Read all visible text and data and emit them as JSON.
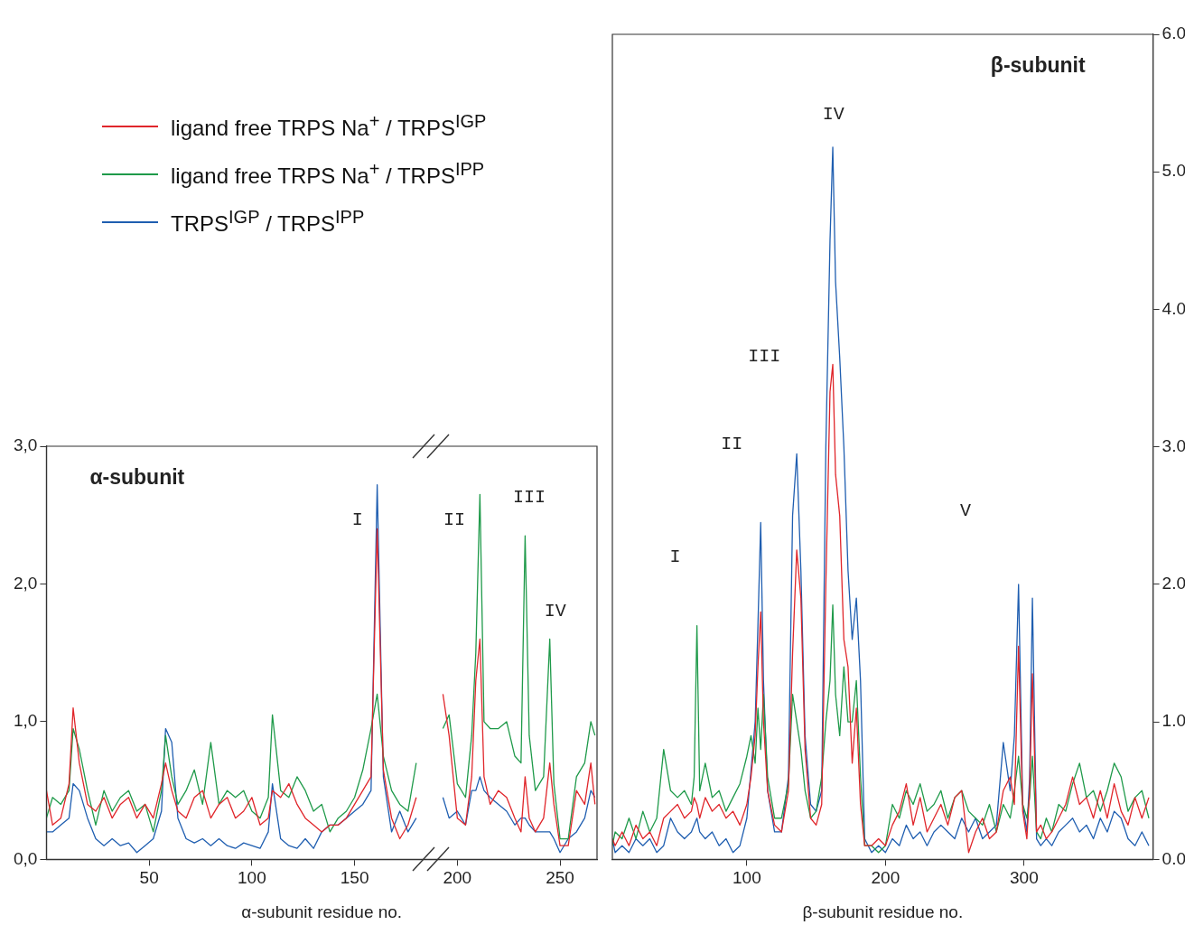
{
  "chart_data": [
    {
      "type": "line",
      "title": "α-subunit",
      "xlabel": "α-subunit residue no.",
      "xlim": [
        0,
        268
      ],
      "xticks": [
        50,
        100,
        150,
        200,
        250
      ],
      "ylim": [
        0,
        3
      ],
      "yticks": [
        {
          "value": 0,
          "label": "0,0"
        },
        {
          "value": 1,
          "label": "1,0"
        },
        {
          "value": 2,
          "label": "2,0"
        },
        {
          "value": 3,
          "label": "3,0"
        }
      ],
      "grid": false,
      "legend": "top left",
      "x": [
        0,
        3,
        7,
        11,
        13,
        16,
        20,
        24,
        28,
        32,
        36,
        40,
        44,
        48,
        52,
        56,
        58,
        61,
        64,
        68,
        72,
        76,
        80,
        84,
        88,
        92,
        96,
        100,
        104,
        108,
        110,
        114,
        118,
        122,
        126,
        130,
        134,
        138,
        142,
        146,
        150,
        154,
        158,
        161,
        164,
        168,
        172,
        176,
        180,
        187,
        193,
        196,
        200,
        204,
        207,
        209,
        211,
        213,
        216,
        220,
        224,
        228,
        231,
        233,
        235,
        238,
        242,
        245,
        247,
        250,
        254,
        258,
        262,
        265,
        267
      ],
      "series": [
        {
          "name": "ligand free TRPS Na$^{+}$ / TRPS$^{IGP}$",
          "color": "#e0262b",
          "values": [
            0.5,
            0.25,
            0.3,
            0.55,
            1.1,
            0.7,
            0.4,
            0.35,
            0.45,
            0.3,
            0.4,
            0.45,
            0.3,
            0.4,
            0.3,
            0.55,
            0.7,
            0.5,
            0.35,
            0.3,
            0.45,
            0.5,
            0.3,
            0.4,
            0.45,
            0.3,
            0.35,
            0.45,
            0.25,
            0.3,
            0.5,
            0.45,
            0.55,
            0.4,
            0.3,
            0.25,
            0.2,
            0.25,
            0.25,
            0.3,
            0.4,
            0.5,
            0.6,
            2.4,
            0.65,
            0.3,
            0.15,
            0.25,
            0.45,
            null,
            1.2,
            0.9,
            0.3,
            0.25,
            0.6,
            1.3,
            1.6,
            0.6,
            0.4,
            0.5,
            0.45,
            0.3,
            0.2,
            0.6,
            0.3,
            0.2,
            0.3,
            0.7,
            0.4,
            0.1,
            0.1,
            0.5,
            0.4,
            0.7,
            0.4
          ]
        },
        {
          "name": "ligand free TRPS Na$^{+}$ / TRPS$^{IPP}$",
          "color": "#1f9a4a",
          "values": [
            0.3,
            0.45,
            0.4,
            0.5,
            0.95,
            0.8,
            0.5,
            0.25,
            0.5,
            0.35,
            0.45,
            0.5,
            0.35,
            0.4,
            0.2,
            0.5,
            0.9,
            0.6,
            0.4,
            0.5,
            0.65,
            0.4,
            0.85,
            0.4,
            0.5,
            0.45,
            0.5,
            0.35,
            0.3,
            0.45,
            1.05,
            0.5,
            0.45,
            0.6,
            0.5,
            0.35,
            0.4,
            0.2,
            0.3,
            0.35,
            0.45,
            0.65,
            0.95,
            1.2,
            0.75,
            0.5,
            0.4,
            0.35,
            0.7,
            null,
            0.95,
            1.05,
            0.55,
            0.45,
            0.9,
            1.5,
            2.65,
            1.0,
            0.95,
            0.95,
            1.0,
            0.75,
            0.7,
            2.35,
            0.9,
            0.5,
            0.6,
            1.6,
            0.55,
            0.15,
            0.15,
            0.6,
            0.7,
            1.0,
            0.9
          ]
        },
        {
          "name": "TRPS$^{IGP}$ / TRPS$^{IPP}$",
          "color": "#1f5eb0",
          "values": [
            0.2,
            0.2,
            0.25,
            0.3,
            0.55,
            0.5,
            0.3,
            0.15,
            0.1,
            0.15,
            0.1,
            0.12,
            0.05,
            0.1,
            0.15,
            0.35,
            0.95,
            0.85,
            0.3,
            0.15,
            0.12,
            0.15,
            0.1,
            0.15,
            0.1,
            0.08,
            0.12,
            0.1,
            0.08,
            0.2,
            0.55,
            0.15,
            0.1,
            0.08,
            0.15,
            0.08,
            0.2,
            0.25,
            0.25,
            0.3,
            0.35,
            0.4,
            0.5,
            2.72,
            0.6,
            0.2,
            0.35,
            0.2,
            0.3,
            null,
            0.45,
            0.3,
            0.35,
            0.25,
            0.5,
            0.5,
            0.6,
            0.5,
            0.45,
            0.4,
            0.35,
            0.25,
            0.3,
            0.3,
            0.25,
            0.2,
            0.2,
            0.2,
            0.15,
            0.05,
            0.15,
            0.2,
            0.3,
            0.5,
            0.45
          ]
        }
      ],
      "annotations": [
        "I",
        "II",
        "III",
        "IV"
      ]
    },
    {
      "type": "line",
      "title": "β-subunit",
      "xlabel": "β-subunit residue no.",
      "xlim": [
        3,
        393
      ],
      "xticks": [
        100,
        200,
        300
      ],
      "ylim": [
        0,
        6
      ],
      "yticks": [
        {
          "value": 0,
          "label": "0.0"
        },
        {
          "value": 1,
          "label": "1.0"
        },
        {
          "value": 2,
          "label": "2.0"
        },
        {
          "value": 3,
          "label": "3.0"
        },
        {
          "value": 4,
          "label": "4.0"
        },
        {
          "value": 5,
          "label": "5.0"
        },
        {
          "value": 6,
          "label": "6.0"
        }
      ],
      "grid": false,
      "x": [
        3,
        5,
        10,
        15,
        20,
        25,
        30,
        35,
        40,
        45,
        50,
        55,
        60,
        62,
        64,
        66,
        70,
        75,
        80,
        85,
        90,
        95,
        100,
        103,
        106,
        108,
        110,
        112,
        115,
        120,
        125,
        130,
        133,
        136,
        139,
        142,
        146,
        150,
        154,
        157,
        160,
        162,
        164,
        167,
        170,
        173,
        176,
        179,
        182,
        185,
        190,
        195,
        200,
        205,
        210,
        215,
        220,
        225,
        230,
        235,
        240,
        245,
        250,
        255,
        260,
        265,
        270,
        275,
        280,
        285,
        290,
        293,
        296,
        299,
        302,
        304,
        306,
        309,
        312,
        316,
        320,
        325,
        330,
        335,
        340,
        345,
        350,
        355,
        360,
        365,
        370,
        375,
        380,
        385,
        390
      ],
      "series": [
        {
          "color": "#e0262b",
          "values": [
            0.15,
            0.1,
            0.2,
            0.1,
            0.25,
            0.15,
            0.2,
            0.1,
            0.3,
            0.35,
            0.4,
            0.3,
            0.35,
            0.45,
            0.4,
            0.3,
            0.45,
            0.35,
            0.4,
            0.3,
            0.35,
            0.25,
            0.4,
            0.6,
            0.9,
            1.4,
            1.8,
            1.0,
            0.5,
            0.25,
            0.2,
            0.5,
            1.5,
            2.25,
            1.9,
            0.8,
            0.3,
            0.25,
            0.4,
            2.0,
            3.4,
            3.6,
            2.8,
            2.5,
            1.6,
            1.4,
            0.7,
            1.1,
            0.4,
            0.1,
            0.1,
            0.15,
            0.1,
            0.25,
            0.35,
            0.55,
            0.25,
            0.45,
            0.2,
            0.3,
            0.4,
            0.25,
            0.45,
            0.5,
            0.05,
            0.2,
            0.3,
            0.15,
            0.2,
            0.5,
            0.6,
            0.4,
            1.55,
            0.35,
            0.15,
            0.5,
            1.35,
            0.2,
            0.25,
            0.15,
            0.2,
            0.3,
            0.4,
            0.6,
            0.4,
            0.45,
            0.3,
            0.5,
            0.3,
            0.55,
            0.35,
            0.25,
            0.45,
            0.3,
            0.45
          ]
        },
        {
          "color": "#1f9a4a",
          "values": [
            0.1,
            0.2,
            0.15,
            0.3,
            0.15,
            0.35,
            0.2,
            0.3,
            0.8,
            0.5,
            0.45,
            0.5,
            0.4,
            0.6,
            1.7,
            0.5,
            0.7,
            0.45,
            0.5,
            0.35,
            0.45,
            0.55,
            0.75,
            0.9,
            0.7,
            1.1,
            0.8,
            1.2,
            0.6,
            0.3,
            0.3,
            0.55,
            1.2,
            1.0,
            0.8,
            0.5,
            0.3,
            0.35,
            0.6,
            1.0,
            1.3,
            1.85,
            1.2,
            0.9,
            1.4,
            1.0,
            1.0,
            1.3,
            0.6,
            0.1,
            0.1,
            0.05,
            0.1,
            0.4,
            0.3,
            0.5,
            0.4,
            0.55,
            0.35,
            0.4,
            0.5,
            0.3,
            0.45,
            0.5,
            0.35,
            0.3,
            0.25,
            0.4,
            0.2,
            0.4,
            0.3,
            0.5,
            0.75,
            0.4,
            0.3,
            0.45,
            0.75,
            0.2,
            0.15,
            0.3,
            0.2,
            0.4,
            0.35,
            0.55,
            0.7,
            0.45,
            0.5,
            0.35,
            0.5,
            0.7,
            0.6,
            0.35,
            0.45,
            0.5,
            0.3
          ]
        },
        {
          "color": "#1f5eb0",
          "values": [
            0.15,
            0.05,
            0.1,
            0.05,
            0.15,
            0.1,
            0.15,
            0.05,
            0.1,
            0.3,
            0.2,
            0.15,
            0.2,
            0.25,
            0.3,
            0.2,
            0.15,
            0.2,
            0.1,
            0.15,
            0.05,
            0.1,
            0.3,
            0.65,
            1.0,
            1.7,
            2.45,
            1.3,
            0.5,
            0.2,
            0.2,
            0.6,
            2.5,
            2.95,
            2.1,
            0.9,
            0.4,
            0.35,
            0.5,
            3.0,
            4.5,
            5.18,
            4.2,
            3.65,
            3.0,
            2.1,
            1.6,
            1.9,
            1.3,
            0.15,
            0.05,
            0.1,
            0.05,
            0.15,
            0.1,
            0.25,
            0.15,
            0.2,
            0.1,
            0.2,
            0.25,
            0.2,
            0.15,
            0.3,
            0.2,
            0.3,
            0.15,
            0.2,
            0.25,
            0.85,
            0.5,
            0.9,
            2.0,
            0.4,
            0.2,
            0.6,
            1.9,
            0.15,
            0.1,
            0.15,
            0.1,
            0.2,
            0.25,
            0.3,
            0.2,
            0.25,
            0.15,
            0.3,
            0.2,
            0.35,
            0.3,
            0.15,
            0.1,
            0.2,
            0.1
          ]
        }
      ],
      "annotations": [
        "I",
        "II",
        "III",
        "IV",
        "V"
      ]
    }
  ]
}
